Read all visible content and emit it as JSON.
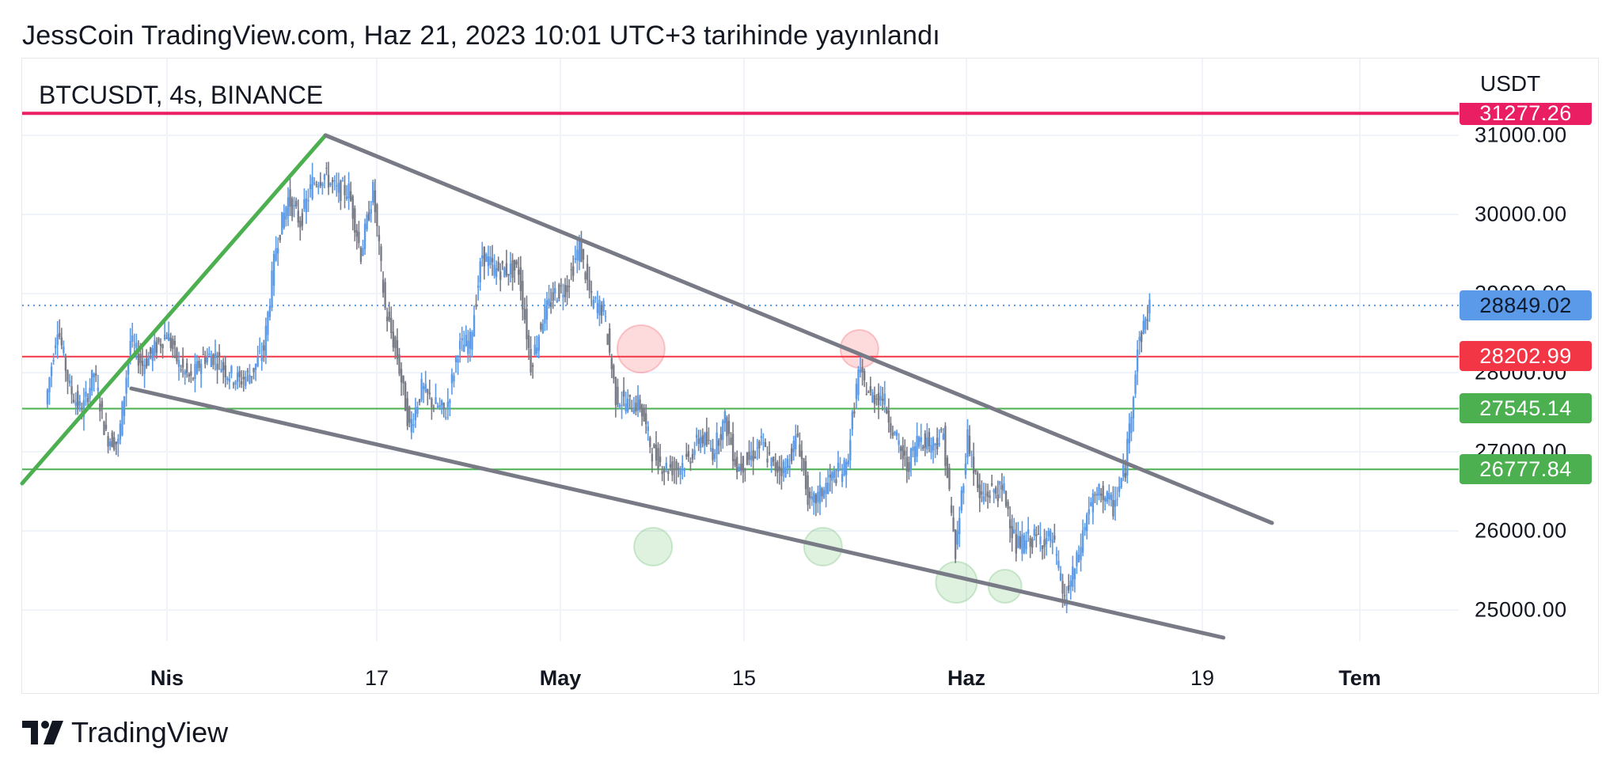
{
  "header": {
    "published": "JessCoin TradingView.com, Haz 21, 2023 10:01 UTC+3 tarihinde yayınlandı"
  },
  "symbol_label": "BTCUSDT, 4s, BINANCE",
  "currency": "USDT",
  "brand": "TradingView",
  "colors": {
    "candle": "#5b9ae8",
    "candle_down": "#787b86",
    "resistance": "#f23645",
    "support": "#4caf50",
    "top_line": "#e91e63",
    "last_price": "#5b9ae8",
    "wedge": "#787b86",
    "rally": "#4caf50"
  },
  "chart_data": {
    "type": "line",
    "symbol": "BTCUSDT",
    "interval": "4s",
    "exchange": "BINANCE",
    "y_axis": {
      "ticks": [
        "31000.00",
        "30000.00",
        "29000.00",
        "28000.00",
        "27000.00",
        "26000.00",
        "25000.00"
      ],
      "range": [
        24700,
        31500
      ]
    },
    "x_axis": {
      "ticks": [
        {
          "label": "Nis",
          "bold": true
        },
        {
          "label": "17",
          "bold": false
        },
        {
          "label": "May",
          "bold": true
        },
        {
          "label": "15",
          "bold": false
        },
        {
          "label": "Haz",
          "bold": true
        },
        {
          "label": "19",
          "bold": false
        },
        {
          "label": "Tem",
          "bold": true
        }
      ]
    },
    "price_series": {
      "name": "BTCUSDT",
      "points": [
        [
          "Mar 22",
          27600
        ],
        [
          "Mar 23",
          28600
        ],
        [
          "Mar 24",
          27800
        ],
        [
          "Mar 25",
          27500
        ],
        [
          "Mar 26",
          28000
        ],
        [
          "Mar 27",
          27200
        ],
        [
          "Mar 28",
          27100
        ],
        [
          "Mar 29",
          28400
        ],
        [
          "Mar 30",
          28100
        ],
        [
          "Mar 31",
          28300
        ],
        [
          "Apr 1",
          28500
        ],
        [
          "Apr 2",
          28100
        ],
        [
          "Apr 3",
          27900
        ],
        [
          "Apr 4",
          28200
        ],
        [
          "Apr 5",
          28200
        ],
        [
          "Apr 6",
          28000
        ],
        [
          "Apr 7",
          27900
        ],
        [
          "Apr 8",
          28000
        ],
        [
          "Apr 9",
          28300
        ],
        [
          "Apr 10",
          29600
        ],
        [
          "Apr 11",
          30200
        ],
        [
          "Apr 12",
          29900
        ],
        [
          "Apr 13",
          30400
        ],
        [
          "Apr 14",
          30500
        ],
        [
          "Apr 15",
          30300
        ],
        [
          "Apr 16",
          30300
        ],
        [
          "Apr 17",
          29500
        ],
        [
          "Apr 18",
          30300
        ],
        [
          "Apr 19",
          28800
        ],
        [
          "Apr 20",
          28200
        ],
        [
          "Apr 21",
          27300
        ],
        [
          "Apr 22",
          27800
        ],
        [
          "Apr 23",
          27600
        ],
        [
          "Apr 24",
          27500
        ],
        [
          "Apr 25",
          28300
        ],
        [
          "Apr 26",
          28400
        ],
        [
          "Apr 27",
          29500
        ],
        [
          "Apr 28",
          29300
        ],
        [
          "Apr 29",
          29300
        ],
        [
          "Apr 30",
          29300
        ],
        [
          "May 1",
          28100
        ],
        [
          "May 2",
          28700
        ],
        [
          "May 3",
          29000
        ],
        [
          "May 4",
          29100
        ],
        [
          "May 5",
          29600
        ],
        [
          "May 6",
          28900
        ],
        [
          "May 7",
          28800
        ],
        [
          "May 8",
          27700
        ],
        [
          "May 9",
          27600
        ],
        [
          "May 10",
          27600
        ],
        [
          "May 11",
          27000
        ],
        [
          "May 12",
          26800
        ],
        [
          "May 13",
          26800
        ],
        [
          "May 14",
          26900
        ],
        [
          "May 15",
          27200
        ],
        [
          "May 16",
          27000
        ],
        [
          "May 17",
          27400
        ],
        [
          "May 18",
          26800
        ],
        [
          "May 19",
          26900
        ],
        [
          "May 20",
          27100
        ],
        [
          "May 21",
          26800
        ],
        [
          "May 22",
          26800
        ],
        [
          "May 23",
          27200
        ],
        [
          "May 24",
          26300
        ],
        [
          "May 25",
          26500
        ],
        [
          "May 26",
          26700
        ],
        [
          "May 27",
          26800
        ],
        [
          "May 28",
          28000
        ],
        [
          "May 29",
          27700
        ],
        [
          "May 30",
          27700
        ],
        [
          "May 31",
          27200
        ],
        [
          "Jun 1",
          26800
        ],
        [
          "Jun 2",
          27200
        ],
        [
          "Jun 3",
          27100
        ],
        [
          "Jun 4",
          27200
        ],
        [
          "Jun 5",
          25700
        ],
        [
          "Jun 6",
          27200
        ],
        [
          "Jun 7",
          26400
        ],
        [
          "Jun 8",
          26500
        ],
        [
          "Jun 9",
          26500
        ],
        [
          "Jun 10",
          25800
        ],
        [
          "Jun 11",
          25900
        ],
        [
          "Jun 12",
          25900
        ],
        [
          "Jun 13",
          25900
        ],
        [
          "Jun 14",
          25100
        ],
        [
          "Jun 15",
          25600
        ],
        [
          "Jun 16",
          26300
        ],
        [
          "Jun 17",
          26500
        ],
        [
          "Jun 18",
          26300
        ],
        [
          "Jun 19",
          26800
        ],
        [
          "Jun 20",
          28300
        ],
        [
          "Jun 21",
          28849.02
        ]
      ]
    },
    "horizontal_levels": [
      {
        "price": 31277.26,
        "label": "31277.26",
        "color": "#e91e63"
      },
      {
        "price": 28849.02,
        "label": "28849.02",
        "color": "#5b9ae8",
        "style": "dotted"
      },
      {
        "price": 28202.99,
        "label": "28202.99",
        "color": "#f23645"
      },
      {
        "price": 27545.14,
        "label": "27545.14",
        "color": "#4caf50"
      },
      {
        "price": 26777.84,
        "label": "26777.84",
        "color": "#4caf50"
      }
    ],
    "trendlines": [
      {
        "name": "rally",
        "from": [
          "Mar 20",
          26600
        ],
        "to": [
          "Apr 14",
          31000
        ],
        "color": "#4caf50"
      },
      {
        "name": "wedge-upper",
        "from": [
          "Apr 14",
          31000
        ],
        "to": [
          "Jul 1",
          26100
        ],
        "color": "#787b86"
      },
      {
        "name": "wedge-lower",
        "from": [
          "Mar 29",
          27800
        ],
        "to": [
          "Jun 27",
          24650
        ],
        "color": "#787b86"
      }
    ],
    "markers": [
      {
        "type": "resistance-touch",
        "date": "May 10",
        "price": 28300,
        "color": "#f23645"
      },
      {
        "type": "resistance-touch",
        "date": "May 28",
        "price": 28300,
        "color": "#f23645"
      },
      {
        "type": "support-touch",
        "date": "May 11",
        "price": 25800,
        "color": "#4caf50"
      },
      {
        "type": "support-touch",
        "date": "May 25",
        "price": 25800,
        "color": "#4caf50"
      },
      {
        "type": "support-touch",
        "date": "Jun 5",
        "price": 25350,
        "color": "#4caf50"
      },
      {
        "type": "support-touch",
        "date": "Jun 9",
        "price": 25300,
        "color": "#4caf50"
      }
    ]
  }
}
